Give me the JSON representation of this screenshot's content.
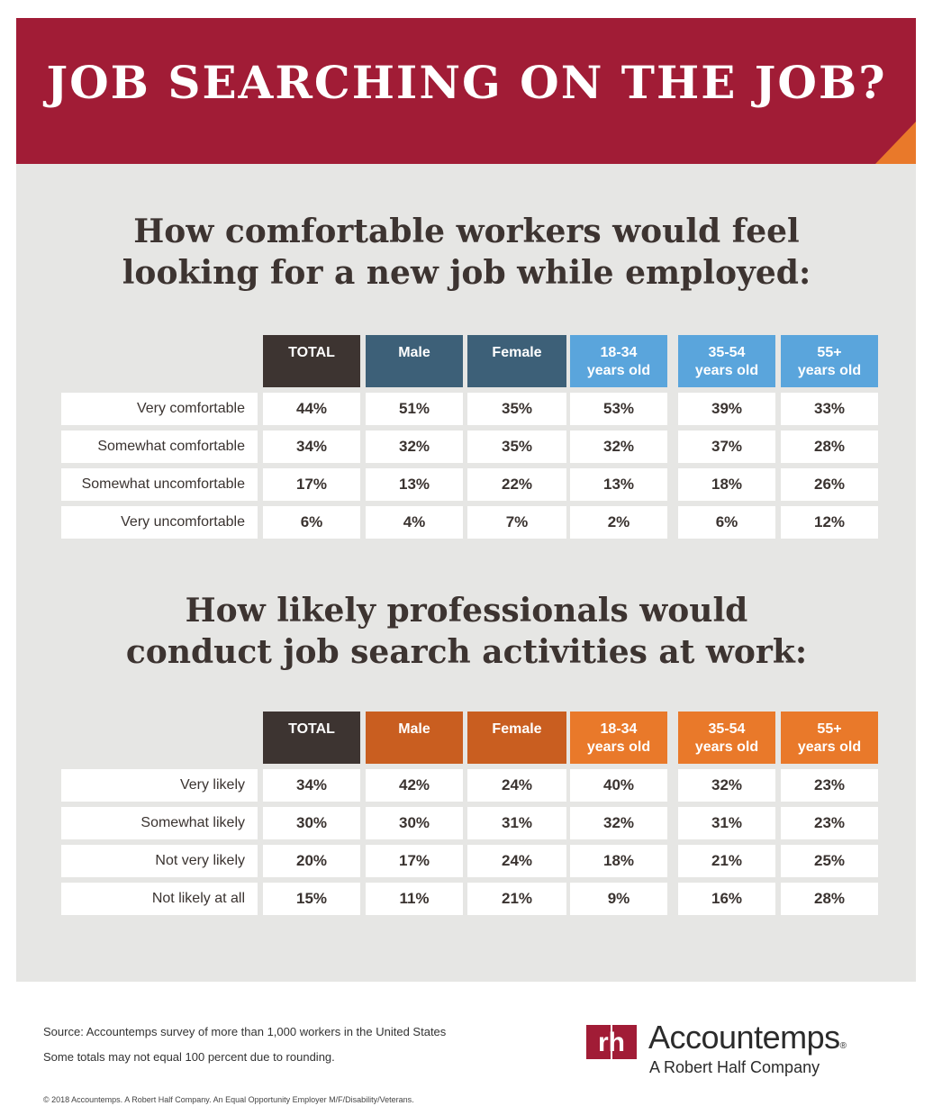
{
  "banner": {
    "title": "JOB SEARCHING ON THE JOB?"
  },
  "colors": {
    "banner": "#a11c36",
    "fold": "#e9792a",
    "total_header": "#3d3431",
    "gender_header_1": "#3d6078",
    "age_header_1": "#5aa5dc",
    "header_2": "#c95e20",
    "age_header_2": "#e9792a",
    "panel": "#e6e6e4"
  },
  "table1": {
    "title_lines": [
      "How comfortable workers would feel",
      "looking for a new job while employed:"
    ],
    "headers": [
      {
        "line1": "TOTAL",
        "line2": ""
      },
      {
        "line1": "Male",
        "line2": ""
      },
      {
        "line1": "Female",
        "line2": ""
      },
      {
        "line1": "18-34",
        "line2": "years old"
      },
      {
        "line1": "35-54",
        "line2": "years old"
      },
      {
        "line1": "55+",
        "line2": "years old"
      }
    ],
    "rows": [
      {
        "label": "Very comfortable",
        "values": [
          "44%",
          "51%",
          "35%",
          "53%",
          "39%",
          "33%"
        ]
      },
      {
        "label": "Somewhat comfortable",
        "values": [
          "34%",
          "32%",
          "35%",
          "32%",
          "37%",
          "28%"
        ]
      },
      {
        "label": "Somewhat uncomfortable",
        "values": [
          "17%",
          "13%",
          "22%",
          "13%",
          "18%",
          "26%"
        ]
      },
      {
        "label": "Very uncomfortable",
        "values": [
          "6%",
          "4%",
          "7%",
          "2%",
          "6%",
          "12%"
        ]
      }
    ]
  },
  "table2": {
    "title_lines": [
      "How likely professionals would",
      "conduct job search activities at work:"
    ],
    "headers": [
      {
        "line1": "TOTAL",
        "line2": ""
      },
      {
        "line1": "Male",
        "line2": ""
      },
      {
        "line1": "Female",
        "line2": ""
      },
      {
        "line1": "18-34",
        "line2": "years old"
      },
      {
        "line1": "35-54",
        "line2": "years old"
      },
      {
        "line1": "55+",
        "line2": "years old"
      }
    ],
    "rows": [
      {
        "label": "Very likely",
        "values": [
          "34%",
          "42%",
          "24%",
          "40%",
          "32%",
          "23%"
        ]
      },
      {
        "label": "Somewhat likely",
        "values": [
          "30%",
          "30%",
          "31%",
          "32%",
          "31%",
          "23%"
        ]
      },
      {
        "label": "Not very likely",
        "values": [
          "20%",
          "17%",
          "24%",
          "18%",
          "21%",
          "25%"
        ]
      },
      {
        "label": "Not likely at all",
        "values": [
          "15%",
          "11%",
          "21%",
          "9%",
          "16%",
          "28%"
        ]
      }
    ]
  },
  "footer": {
    "source": "Source: Accountemps survey of more than 1,000 workers in the United States",
    "note": "Some totals may not equal 100 percent due to rounding.",
    "copyright": "© 2018 Accountemps. A Robert Half Company. An Equal Opportunity Employer M/F/Disability/Veterans.",
    "logo_mark": "rh",
    "brand": "Accountemps",
    "brand_reg": "®",
    "brand_sub": "A Robert Half Company"
  }
}
